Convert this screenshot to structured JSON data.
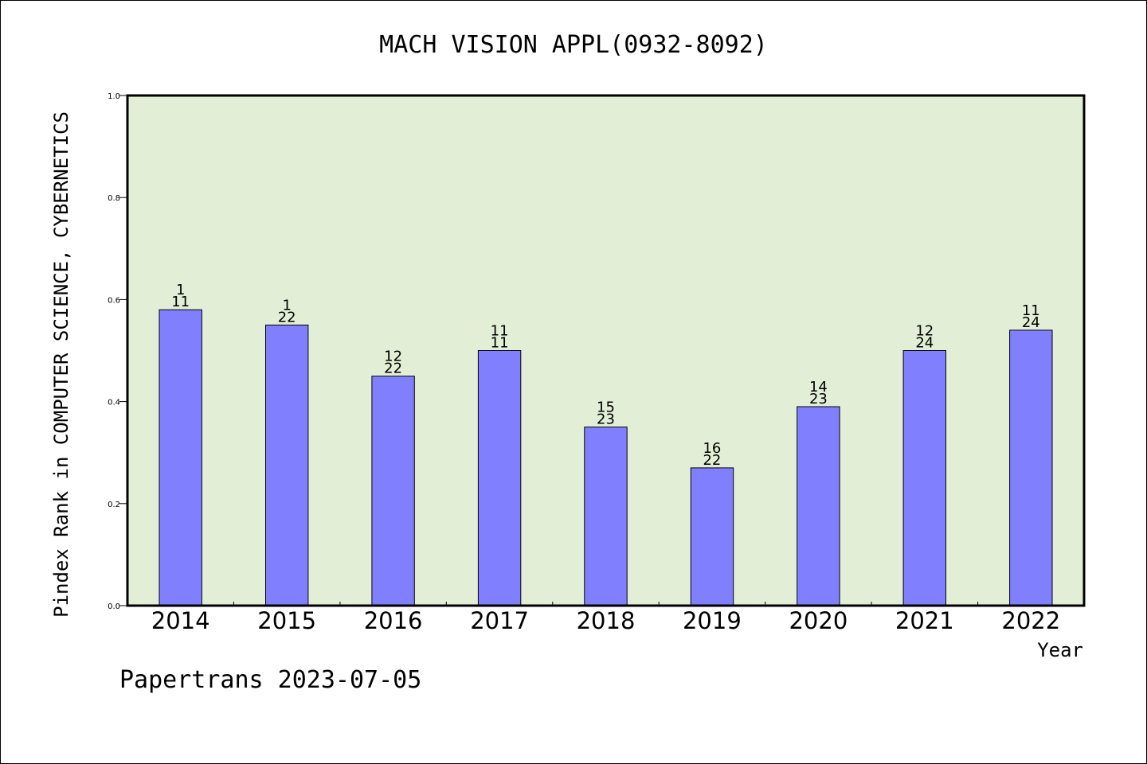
{
  "chart_data": {
    "type": "bar",
    "title": "MACH VISION APPL(0932-8092)",
    "xlabel": "Year",
    "ylabel": "Pindex Rank in COMPUTER SCIENCE, CYBERNETICS",
    "categories": [
      "2014",
      "2015",
      "2016",
      "2017",
      "2018",
      "2019",
      "2020",
      "2021",
      "2022"
    ],
    "values": [
      0.58,
      0.55,
      0.45,
      0.5,
      0.35,
      0.27,
      0.39,
      0.5,
      0.54
    ],
    "bar_labels_top": [
      "1",
      "1",
      "12",
      "11",
      "15",
      "16",
      "14",
      "12",
      "11"
    ],
    "bar_labels_bottom": [
      "11",
      "22",
      "22",
      "11",
      "23",
      "22",
      "23",
      "24",
      "24"
    ],
    "ylim": [
      0,
      1.0
    ],
    "yticks": [
      0.0,
      0.2,
      0.4,
      0.6,
      0.8,
      1.0
    ],
    "ytick_labels": [
      "0.0",
      "0.2",
      "0.4",
      "0.6",
      "0.8",
      "1.0"
    ],
    "grid": false,
    "colors": {
      "plot_background": "#e2efd6",
      "bar_fill": "#8080ff",
      "bar_stroke": "#000000",
      "axis": "#000000"
    }
  },
  "footer": "Papertrans 2023-07-05"
}
